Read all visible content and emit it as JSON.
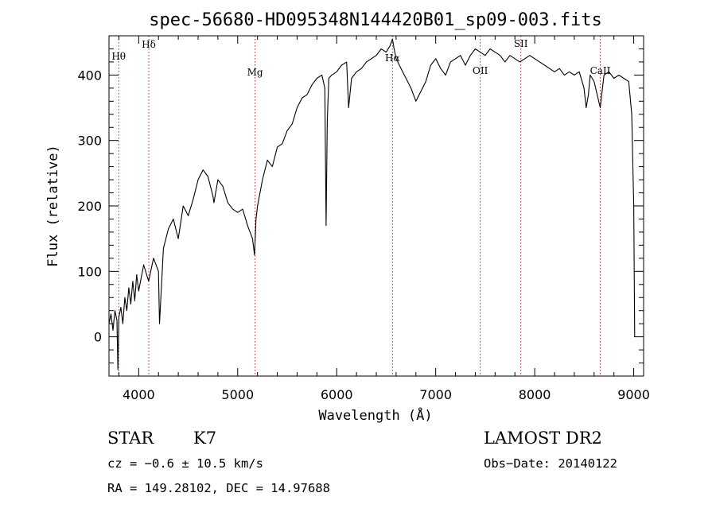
{
  "chart_data": {
    "type": "line",
    "title": "spec-56680-HD095348N144420B01_sp09-003.fits",
    "xlabel": "Wavelength (Å)",
    "ylabel": "Flux (relative)",
    "xlim": [
      3700,
      9100
    ],
    "ylim": [
      -60,
      460
    ],
    "xticks": [
      4000,
      5000,
      6000,
      7000,
      8000,
      9000
    ],
    "yticks": [
      0,
      100,
      200,
      300,
      400
    ],
    "grid": false,
    "line_color": "#000000",
    "marker_color": "#b22222",
    "line_markers": [
      {
        "label": "Hθ",
        "x": 3798
      },
      {
        "label": "Hδ",
        "x": 4102
      },
      {
        "label": "Mg",
        "x": 5175
      },
      {
        "label": "Hα",
        "x": 6563
      },
      {
        "label": "OII",
        "x": 7450
      },
      {
        "label": "SII",
        "x": 7860
      },
      {
        "label": "CaII",
        "x": 8662
      }
    ],
    "series": [
      {
        "x": [
          3700,
          3720,
          3740,
          3760,
          3780,
          3790,
          3800,
          3820,
          3840,
          3860,
          3880,
          3900,
          3920,
          3940,
          3960,
          3980,
          4000,
          4050,
          4100,
          4150,
          4200,
          4210,
          4250,
          4300,
          4350,
          4400,
          4450,
          4500,
          4550,
          4600,
          4650,
          4700,
          4750,
          4760,
          4800,
          4850,
          4900,
          4950,
          5000,
          5050,
          5100,
          5150,
          5170,
          5185,
          5200,
          5250,
          5300,
          5350,
          5400,
          5450,
          5500,
          5550,
          5600,
          5650,
          5700,
          5750,
          5800,
          5850,
          5880,
          5893,
          5905,
          5920,
          5950,
          6000,
          6050,
          6100,
          6120,
          6150,
          6200,
          6250,
          6300,
          6350,
          6400,
          6450,
          6500,
          6540,
          6563,
          6580,
          6600,
          6650,
          6700,
          6750,
          6800,
          6850,
          6900,
          6950,
          7000,
          7050,
          7100,
          7150,
          7200,
          7250,
          7300,
          7350,
          7400,
          7450,
          7500,
          7550,
          7600,
          7650,
          7700,
          7750,
          7800,
          7850,
          7900,
          7950,
          8000,
          8050,
          8100,
          8150,
          8200,
          8250,
          8300,
          8350,
          8400,
          8450,
          8498,
          8520,
          8542,
          8560,
          8600,
          8662,
          8700,
          8750,
          8800,
          8850,
          8900,
          8950,
          8980,
          9000,
          9010
        ],
        "values": [
          20,
          35,
          10,
          40,
          25,
          -50,
          30,
          45,
          20,
          60,
          40,
          75,
          50,
          85,
          55,
          95,
          70,
          110,
          85,
          120,
          100,
          20,
          135,
          165,
          180,
          150,
          200,
          185,
          210,
          240,
          255,
          245,
          215,
          205,
          240,
          230,
          205,
          195,
          190,
          195,
          170,
          150,
          125,
          180,
          200,
          240,
          270,
          260,
          290,
          295,
          315,
          325,
          350,
          365,
          370,
          385,
          395,
          400,
          380,
          170,
          330,
          395,
          400,
          405,
          415,
          420,
          350,
          395,
          405,
          410,
          420,
          425,
          430,
          440,
          435,
          445,
          455,
          440,
          425,
          410,
          395,
          380,
          360,
          375,
          390,
          415,
          425,
          410,
          400,
          420,
          425,
          430,
          415,
          430,
          440,
          435,
          430,
          440,
          435,
          430,
          420,
          430,
          425,
          420,
          425,
          430,
          425,
          420,
          415,
          410,
          405,
          410,
          400,
          405,
          400,
          405,
          380,
          350,
          370,
          400,
          390,
          350,
          400,
          405,
          395,
          400,
          395,
          390,
          340,
          200,
          0
        ]
      }
    ],
    "annotations": {
      "object_class": "STAR",
      "subclass": "K7",
      "survey": "LAMOST DR2",
      "cz": "cz = −0.6 ± 10.5 km/s",
      "obs_date": "Obs−Date: 20140122",
      "coords": "RA = 149.28102, DEC =  14.97688"
    }
  }
}
